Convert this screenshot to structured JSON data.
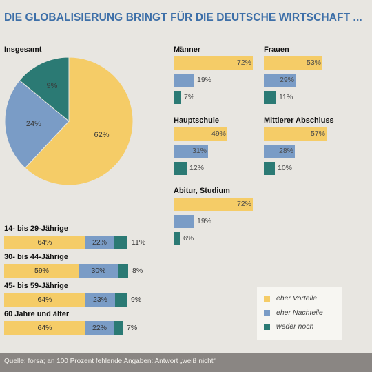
{
  "title": "DIE GLOBALISIERUNG BRINGT FÜR DIE DEUTSCHE WIRTSCHAFT ...",
  "colors": {
    "vorteile": "#f5cc67",
    "nachteile": "#7a9cc6",
    "weder": "#2b7a74"
  },
  "legend": [
    "eher Vorteile",
    "eher Nachteile",
    "weder noch"
  ],
  "footer": "Quelle: forsa; an 100 Prozent fehlende Angaben: Antwort „weiß nicht“",
  "chart_data": [
    {
      "type": "pie",
      "title": "Insgesamt",
      "labels": [
        "eher Vorteile",
        "eher Nachteile",
        "weder noch"
      ],
      "values": [
        62,
        24,
        9
      ],
      "value_labels": [
        "62%",
        "24%",
        "9%"
      ]
    },
    {
      "type": "bar",
      "orientation": "horizontal",
      "panels": [
        {
          "title": "Männer",
          "values": [
            72,
            19,
            7
          ],
          "labels": [
            "72%",
            "19%",
            "7%"
          ]
        },
        {
          "title": "Frauen",
          "values": [
            53,
            29,
            11
          ],
          "labels": [
            "53%",
            "29%",
            "11%"
          ]
        },
        {
          "title": "Hauptschule",
          "values": [
            49,
            31,
            12
          ],
          "labels": [
            "49%",
            "31%",
            "12%"
          ]
        },
        {
          "title": "Mittlerer Abschluss",
          "values": [
            57,
            28,
            10
          ],
          "labels": [
            "57%",
            "28%",
            "10%"
          ]
        },
        {
          "title": "Abitur, Studium",
          "values": [
            72,
            19,
            6
          ],
          "labels": [
            "72%",
            "19%",
            "6%"
          ]
        }
      ],
      "series": [
        "eher Vorteile",
        "eher Nachteile",
        "weder noch"
      ]
    },
    {
      "type": "bar",
      "orientation": "horizontal",
      "stacked": true,
      "categories": [
        "14- bis 29-Jährige",
        "30- bis 44-Jährige",
        "45- bis 59-Jährige",
        "60 Jahre und älter"
      ],
      "series": [
        {
          "name": "eher Vorteile",
          "values": [
            64,
            59,
            64,
            64
          ],
          "labels": [
            "64%",
            "59%",
            "64%",
            "64%"
          ]
        },
        {
          "name": "eher Nachteile",
          "values": [
            22,
            30,
            23,
            22
          ],
          "labels": [
            "22%",
            "30%",
            "23%",
            "22%"
          ]
        },
        {
          "name": "weder noch",
          "values": [
            11,
            8,
            9,
            7
          ],
          "labels": [
            "11%",
            "8%",
            "9%",
            "7%"
          ]
        }
      ]
    }
  ]
}
